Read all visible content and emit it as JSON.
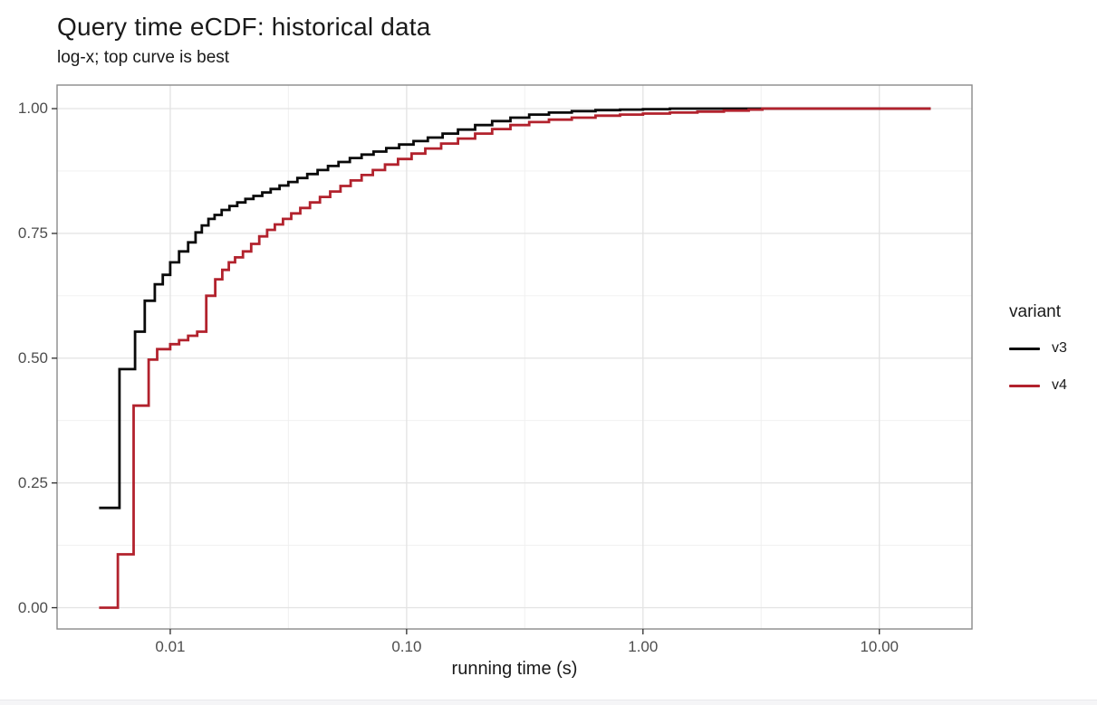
{
  "figure": {
    "title": "Query time eCDF: historical data",
    "subtitle": "log-x; top curve is best"
  },
  "chart_data": {
    "type": "line",
    "subtype": "ecdf-step",
    "title": "Query time eCDF: historical data",
    "subtitle": "log-x; top curve is best",
    "xlabel": "running time (s)",
    "ylabel": "",
    "x_scale": "log10",
    "grid": true,
    "legend_title": "variant",
    "legend_position": "right",
    "x_ticks": [
      0.01,
      0.1,
      1,
      10
    ],
    "x_tick_labels": [
      "0.01",
      "0.10",
      "1.00",
      "10.00"
    ],
    "x_minor_ticks": [
      0.0316,
      0.316,
      3.16
    ],
    "y_ticks": [
      0,
      0.25,
      0.5,
      0.75,
      1
    ],
    "y_tick_labels": [
      "0.00",
      "0.25",
      "0.50",
      "0.75",
      "1.00"
    ],
    "y_minor_ticks": [
      0.125,
      0.375,
      0.625,
      0.875
    ],
    "xlim": [
      0.00332,
      24.66
    ],
    "ylim": [
      -0.0426,
      1.0472
    ],
    "series": [
      {
        "name": "v3",
        "color": "#0a0a0a",
        "points": [
          [
            0.005,
            0.2
          ],
          [
            0.0061,
            0.478
          ],
          [
            0.0071,
            0.553
          ],
          [
            0.0078,
            0.615
          ],
          [
            0.0086,
            0.648
          ],
          [
            0.0093,
            0.667
          ],
          [
            0.01,
            0.692
          ],
          [
            0.0109,
            0.714
          ],
          [
            0.0119,
            0.732
          ],
          [
            0.0128,
            0.752
          ],
          [
            0.0136,
            0.766
          ],
          [
            0.0145,
            0.779
          ],
          [
            0.0154,
            0.787
          ],
          [
            0.0165,
            0.797
          ],
          [
            0.0178,
            0.805
          ],
          [
            0.0192,
            0.812
          ],
          [
            0.0208,
            0.819
          ],
          [
            0.0225,
            0.825
          ],
          [
            0.0245,
            0.832
          ],
          [
            0.0266,
            0.839
          ],
          [
            0.029,
            0.846
          ],
          [
            0.0316,
            0.853
          ],
          [
            0.0345,
            0.861
          ],
          [
            0.038,
            0.869
          ],
          [
            0.042,
            0.877
          ],
          [
            0.0465,
            0.885
          ],
          [
            0.0515,
            0.893
          ],
          [
            0.0575,
            0.901
          ],
          [
            0.0645,
            0.908
          ],
          [
            0.0725,
            0.914
          ],
          [
            0.082,
            0.921
          ],
          [
            0.093,
            0.928
          ],
          [
            0.107,
            0.935
          ],
          [
            0.123,
            0.942
          ],
          [
            0.142,
            0.95
          ],
          [
            0.165,
            0.958
          ],
          [
            0.195,
            0.967
          ],
          [
            0.23,
            0.975
          ],
          [
            0.275,
            0.982
          ],
          [
            0.33,
            0.988
          ],
          [
            0.4,
            0.992
          ],
          [
            0.5,
            0.995
          ],
          [
            0.63,
            0.997
          ],
          [
            0.8,
            0.998
          ],
          [
            1.0,
            0.999
          ],
          [
            1.3,
            1.0
          ],
          [
            16.5,
            1.0
          ]
        ]
      },
      {
        "name": "v4",
        "color": "#b2222d",
        "points": [
          [
            0.005,
            0.0
          ],
          [
            0.006,
            0.107
          ],
          [
            0.007,
            0.405
          ],
          [
            0.0081,
            0.497
          ],
          [
            0.0088,
            0.518
          ],
          [
            0.01,
            0.528
          ],
          [
            0.0109,
            0.536
          ],
          [
            0.0119,
            0.545
          ],
          [
            0.013,
            0.553
          ],
          [
            0.0142,
            0.625
          ],
          [
            0.0155,
            0.658
          ],
          [
            0.0166,
            0.677
          ],
          [
            0.0177,
            0.692
          ],
          [
            0.0188,
            0.702
          ],
          [
            0.0203,
            0.714
          ],
          [
            0.022,
            0.729
          ],
          [
            0.0238,
            0.744
          ],
          [
            0.0257,
            0.757
          ],
          [
            0.0277,
            0.768
          ],
          [
            0.03,
            0.779
          ],
          [
            0.0325,
            0.79
          ],
          [
            0.0355,
            0.801
          ],
          [
            0.039,
            0.812
          ],
          [
            0.043,
            0.823
          ],
          [
            0.0475,
            0.834
          ],
          [
            0.0525,
            0.845
          ],
          [
            0.058,
            0.856
          ],
          [
            0.0645,
            0.867
          ],
          [
            0.072,
            0.877
          ],
          [
            0.081,
            0.888
          ],
          [
            0.092,
            0.899
          ],
          [
            0.105,
            0.91
          ],
          [
            0.12,
            0.92
          ],
          [
            0.14,
            0.93
          ],
          [
            0.165,
            0.94
          ],
          [
            0.195,
            0.95
          ],
          [
            0.23,
            0.959
          ],
          [
            0.275,
            0.967
          ],
          [
            0.33,
            0.973
          ],
          [
            0.4,
            0.978
          ],
          [
            0.5,
            0.982
          ],
          [
            0.63,
            0.986
          ],
          [
            0.8,
            0.988
          ],
          [
            1.0,
            0.99
          ],
          [
            1.3,
            0.992
          ],
          [
            1.7,
            0.994
          ],
          [
            2.2,
            0.996
          ],
          [
            2.8,
            0.998
          ],
          [
            3.2,
            1.0
          ],
          [
            16.5,
            1.0
          ]
        ]
      }
    ]
  },
  "colors": {
    "background": "#ffffff",
    "panel_border": "#8a8a8a",
    "grid_major": "#e3e3e3",
    "grid_minor": "#efefef",
    "tick_mark": "#2b2b2b",
    "tick_label": "#4d4d4d",
    "text": "#1a1a1a",
    "series_v3": "#0a0a0a",
    "series_v4": "#b2222d"
  }
}
